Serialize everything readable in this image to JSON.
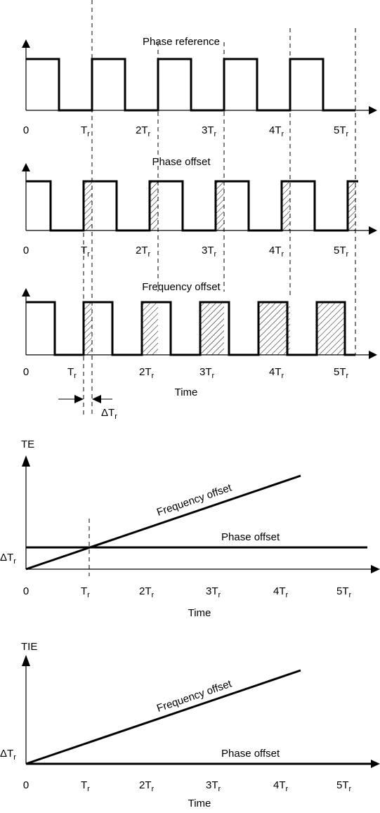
{
  "time_label": "Time",
  "tick_labels": [
    "0",
    "T",
    "2T",
    "3T",
    "4T",
    "5T"
  ],
  "tick_subscript": "r",
  "panels": {
    "reference": {
      "title": "Phase reference"
    },
    "phase": {
      "title": "Phase offset"
    },
    "frequency": {
      "title": "Frequency offset"
    }
  },
  "delta_label": "ΔT",
  "te_chart": {
    "ylabel": "TE",
    "xlabel": "Time",
    "y_tick": "ΔT",
    "freq_label": "Frequency offset",
    "phase_label": "Phase offset"
  },
  "tie_chart": {
    "ylabel": "TIE",
    "xlabel": "Time",
    "y_tick": "ΔT",
    "freq_label": "Frequency offset",
    "phase_label": "Phase offset"
  },
  "colors": {
    "ink": "#000000",
    "hatch": "#000000",
    "background": "#ffffff"
  }
}
